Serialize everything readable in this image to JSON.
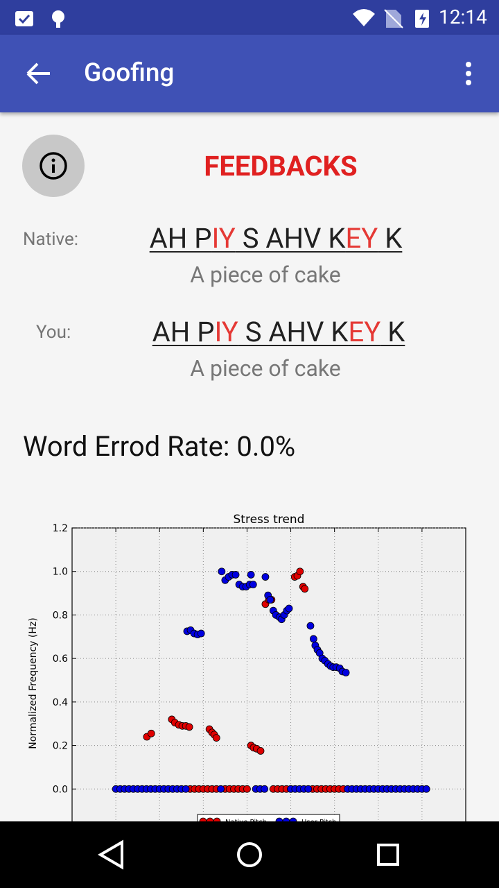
{
  "status_bar": {
    "time": "12:14"
  },
  "app_bar": {
    "title": "Goofing"
  },
  "header": {
    "title": "FEEDBACKS"
  },
  "native": {
    "label": "Native:",
    "segments": [
      {
        "text": "AH P",
        "color": "#212121"
      },
      {
        "text": "IY",
        "color": "#e53935"
      },
      {
        "text": " S AHV K",
        "color": "#212121"
      },
      {
        "text": "EY",
        "color": "#e53935"
      },
      {
        "text": " K",
        "color": "#212121"
      }
    ],
    "phrase": "A piece of cake"
  },
  "user": {
    "label": "You:",
    "segments": [
      {
        "text": "AH P",
        "color": "#212121"
      },
      {
        "text": "IY",
        "color": "#e53935"
      },
      {
        "text": " S AHV K",
        "color": "#212121"
      },
      {
        "text": "EY",
        "color": "#e53935"
      },
      {
        "text": " K",
        "color": "#212121"
      }
    ],
    "phrase": "A piece of cake"
  },
  "word_error_rate": "Word Errod Rate: 0.0%",
  "chart_data": {
    "type": "scatter",
    "title": "Stress trend",
    "y_label": "Normalized Frequency (Hz)",
    "xlim": [
      0,
      9
    ],
    "xticks": [
      1,
      2,
      3,
      4,
      5,
      6,
      7,
      8
    ],
    "ylim": [
      -0.2,
      1.2
    ],
    "yticks": [
      {
        "value": 0,
        "label": "0.0"
      },
      {
        "value": 0.2,
        "label": "0.2"
      },
      {
        "value": 0.4,
        "label": "0.4"
      },
      {
        "value": 0.6,
        "label": "0.6"
      },
      {
        "value": 0.8,
        "label": "0.8"
      },
      {
        "value": 1,
        "label": "1.0"
      },
      {
        "value": 1.2,
        "label": "1.2"
      }
    ],
    "grid": true,
    "legend": "bottom",
    "series": [
      {
        "name": "Native Pitch",
        "color": "#e00000",
        "x": [
          1.71,
          1.81,
          2.28,
          2.35,
          2.44,
          2.52,
          2.6,
          2.68,
          2.7,
          2.8,
          2.9,
          3.0,
          3.1,
          3.2,
          3.3,
          3.14,
          3.2,
          3.25,
          3.3,
          3.5,
          3.6,
          3.7,
          3.8,
          3.9,
          4.0,
          4.09,
          4.15,
          4.22,
          4.31,
          4.42,
          4.5,
          4.56,
          4.6,
          4.7,
          4.8,
          4.9,
          5.0,
          5.09,
          5.15,
          5.21,
          5.28,
          5.32,
          5.5,
          5.6,
          5.7,
          5.8,
          5.9,
          6.0,
          6.1,
          6.2
        ],
        "values": [
          0.24,
          0.255,
          0.32,
          0.305,
          0.295,
          0.29,
          0.29,
          0.285,
          0,
          0,
          0,
          0,
          0,
          0,
          0,
          0.275,
          0.26,
          0.25,
          0.235,
          0,
          0,
          0,
          0,
          0,
          0,
          0.2,
          0.19,
          0.185,
          0.175,
          0.85,
          0.87,
          0.87,
          0,
          0,
          0,
          0,
          0,
          0.975,
          0.98,
          1.0,
          0.93,
          0.92,
          0,
          0,
          0,
          0,
          0,
          0,
          0,
          0
        ]
      },
      {
        "name": "User Pitch",
        "color": "#0000e0",
        "x": [
          1.0,
          1.1,
          1.2,
          1.3,
          1.4,
          1.5,
          1.6,
          1.7,
          1.8,
          1.9,
          2.0,
          2.1,
          2.2,
          2.3,
          2.4,
          2.5,
          2.6,
          2.63,
          2.71,
          2.79,
          2.87,
          2.95,
          3.4,
          3.42,
          3.5,
          3.58,
          3.66,
          3.74,
          3.82,
          3.9,
          3.98,
          4.06,
          4.09,
          4.14,
          4.2,
          4.3,
          4.4,
          4.42,
          4.48,
          4.53,
          4.6,
          4.66,
          4.74,
          4.79,
          4.85,
          4.91,
          4.96,
          5.0,
          5.1,
          5.2,
          5.3,
          5.4,
          5.45,
          5.52,
          5.56,
          5.61,
          5.66,
          5.72,
          5.78,
          5.85,
          5.91,
          5.97,
          6.04,
          6.12,
          6.18,
          6.26,
          6.3,
          6.4,
          6.5,
          6.6,
          6.7,
          6.8,
          6.9,
          7.0,
          7.1,
          7.2,
          7.3,
          7.4,
          7.5,
          7.6,
          7.7,
          7.8,
          7.9,
          8.0,
          8.1
        ],
        "values": [
          0,
          0,
          0,
          0,
          0,
          0,
          0,
          0,
          0,
          0,
          0,
          0,
          0,
          0,
          0,
          0,
          0,
          0.725,
          0.73,
          0.715,
          0.71,
          0.715,
          0,
          1.0,
          0.96,
          0.975,
          0.985,
          0.985,
          0.94,
          0.93,
          0.93,
          0.94,
          0.985,
          0.94,
          0,
          0,
          0,
          0.975,
          0.89,
          0.87,
          0.82,
          0.8,
          0.79,
          0.78,
          0.8,
          0.82,
          0.83,
          0,
          0,
          0,
          0,
          0,
          0.75,
          0.69,
          0.66,
          0.64,
          0.625,
          0.6,
          0.59,
          0.575,
          0.565,
          0.56,
          0.56,
          0.555,
          0.54,
          0.535,
          0,
          0,
          0,
          0,
          0,
          0,
          0,
          0,
          0,
          0,
          0,
          0,
          0,
          0,
          0,
          0,
          0,
          0,
          0
        ]
      }
    ]
  }
}
